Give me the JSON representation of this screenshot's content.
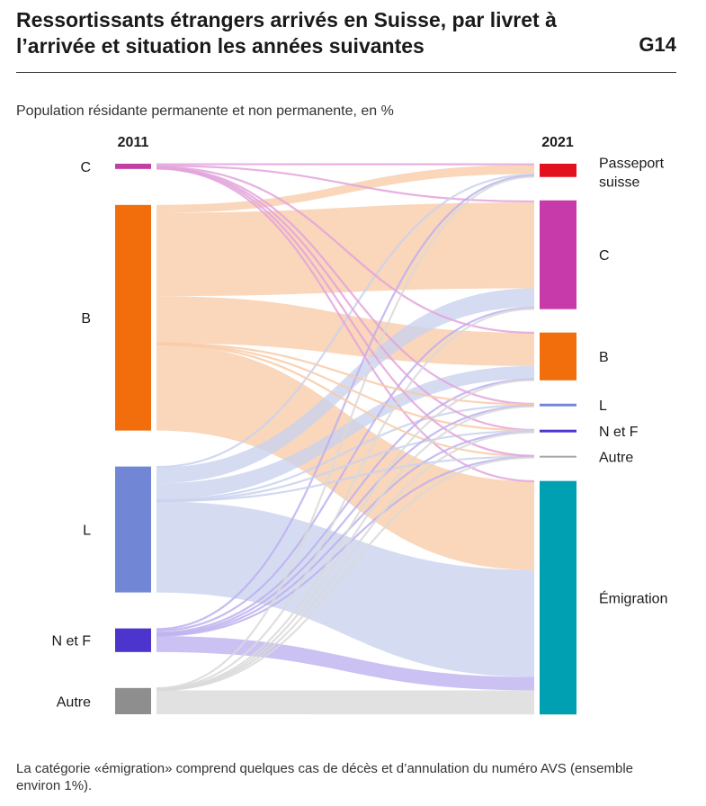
{
  "header": {
    "title": "Ressortissants étrangers arrivés en Suisse, par livret à l’arrivée et situation les années suivantes",
    "code": "G14"
  },
  "subtitle": "Population résidante permanente et non permanente, en %",
  "footnote": "La catégorie «émigration» comprend quelques cas de décès et d’annulation du numéro AVS (ensemble environ 1%).",
  "chart_data": {
    "type": "sankey",
    "years": {
      "left": "2011",
      "right": "2021"
    },
    "unit": "%",
    "left_nodes": [
      {
        "id": "C",
        "label": "C",
        "value": 1,
        "color": "#c23fa6"
      },
      {
        "id": "B",
        "label": "B",
        "value": 43,
        "color": "#f26d0c"
      },
      {
        "id": "L",
        "label": "L",
        "value": 24,
        "color": "#7187d6"
      },
      {
        "id": "NF",
        "label": "N et F",
        "value": 4.5,
        "color": "#4c35cc"
      },
      {
        "id": "A",
        "label": "Autre",
        "value": 5,
        "color": "#8e8e8e"
      }
    ],
    "right_nodes": [
      {
        "id": "P",
        "label": "Passeport suisse",
        "value": 2.5,
        "color": "#e3101f"
      },
      {
        "id": "C",
        "label": "C",
        "value": 20.5,
        "color": "#c73aa9"
      },
      {
        "id": "B",
        "label": "B",
        "value": 9,
        "color": "#f26d0c"
      },
      {
        "id": "L",
        "label": "L",
        "value": 0.5,
        "color": "#7187d6"
      },
      {
        "id": "NF",
        "label": "N et F",
        "value": 0.5,
        "color": "#4c35cc"
      },
      {
        "id": "A",
        "label": "Autre",
        "value": 0.3,
        "color": "#a6a6a6"
      },
      {
        "id": "E",
        "label": "Émigration",
        "value": 44,
        "color": "#00a0b3"
      }
    ],
    "flows": [
      {
        "from": "C",
        "to": "P",
        "value": 0.2,
        "color": "#e3a3dc"
      },
      {
        "from": "C",
        "to": "C",
        "value": 0.4,
        "color": "#e3a3dc"
      },
      {
        "from": "C",
        "to": "B",
        "value": 0.1,
        "color": "#e3a3dc"
      },
      {
        "from": "C",
        "to": "L",
        "value": 0.1,
        "color": "#e3a3dc"
      },
      {
        "from": "C",
        "to": "NF",
        "value": 0.1,
        "color": "#e3a3dc"
      },
      {
        "from": "C",
        "to": "A",
        "value": 0.05,
        "color": "#e3a3dc"
      },
      {
        "from": "C",
        "to": "E",
        "value": 0.1,
        "color": "#e3a3dc"
      },
      {
        "from": "B",
        "to": "P",
        "value": 1.5,
        "color": "#f9caa6"
      },
      {
        "from": "B",
        "to": "C",
        "value": 16,
        "color": "#f9caa6"
      },
      {
        "from": "B",
        "to": "B",
        "value": 9,
        "color": "#f9caa6"
      },
      {
        "from": "B",
        "to": "L",
        "value": 0.1,
        "color": "#f9caa6"
      },
      {
        "from": "B",
        "to": "NF",
        "value": 0.1,
        "color": "#f9caa6"
      },
      {
        "from": "B",
        "to": "A",
        "value": 0.1,
        "color": "#f9caa6"
      },
      {
        "from": "B",
        "to": "E",
        "value": 16.5,
        "color": "#f9caa6"
      },
      {
        "from": "L",
        "to": "P",
        "value": 0.2,
        "color": "#c9d2ee"
      },
      {
        "from": "L",
        "to": "C",
        "value": 3.5,
        "color": "#c9d2ee"
      },
      {
        "from": "L",
        "to": "B",
        "value": 3.5,
        "color": "#c9d2ee"
      },
      {
        "from": "L",
        "to": "L",
        "value": 0.3,
        "color": "#c9d2ee"
      },
      {
        "from": "L",
        "to": "NF",
        "value": 0.1,
        "color": "#c9d2ee"
      },
      {
        "from": "L",
        "to": "A",
        "value": 0.1,
        "color": "#c9d2ee"
      },
      {
        "from": "L",
        "to": "E",
        "value": 20,
        "color": "#c9d2ee"
      },
      {
        "from": "NF",
        "to": "P",
        "value": 0.2,
        "color": "#bdb0ef"
      },
      {
        "from": "NF",
        "to": "C",
        "value": 0.3,
        "color": "#bdb0ef"
      },
      {
        "from": "NF",
        "to": "B",
        "value": 0.3,
        "color": "#bdb0ef"
      },
      {
        "from": "NF",
        "to": "L",
        "value": 0.1,
        "color": "#bdb0ef"
      },
      {
        "from": "NF",
        "to": "NF",
        "value": 0.2,
        "color": "#bdb0ef"
      },
      {
        "from": "NF",
        "to": "A",
        "value": 0.1,
        "color": "#bdb0ef"
      },
      {
        "from": "NF",
        "to": "E",
        "value": 2.5,
        "color": "#bdb0ef"
      },
      {
        "from": "A",
        "to": "P",
        "value": 0.1,
        "color": "#d9d9d9"
      },
      {
        "from": "A",
        "to": "C",
        "value": 0.1,
        "color": "#d9d9d9"
      },
      {
        "from": "A",
        "to": "B",
        "value": 0.1,
        "color": "#d9d9d9"
      },
      {
        "from": "A",
        "to": "L",
        "value": 0.05,
        "color": "#d9d9d9"
      },
      {
        "from": "A",
        "to": "NF",
        "value": 0.05,
        "color": "#d9d9d9"
      },
      {
        "from": "A",
        "to": "A",
        "value": 0.05,
        "color": "#d9d9d9"
      },
      {
        "from": "A",
        "to": "E",
        "value": 4.5,
        "color": "#d9d9d9"
      }
    ]
  }
}
